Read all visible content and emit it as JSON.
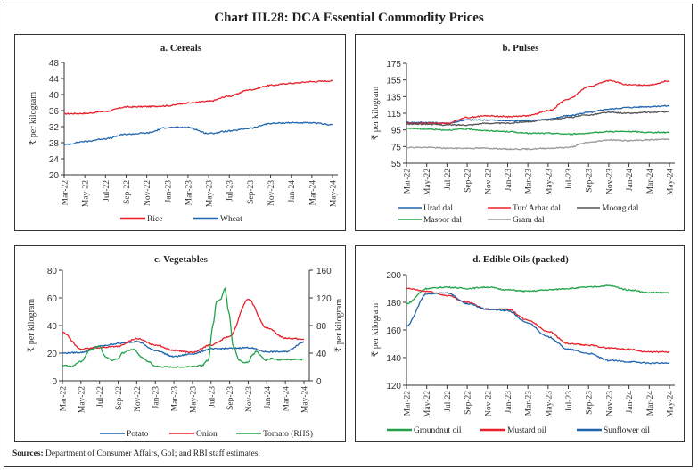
{
  "title": "Chart III.28: DCA Essential Commodity Prices",
  "sources_label": "Sources:",
  "sources_text": " Department of Consumer Affairs, GoI; and RBI staff estimates.",
  "chart_data": [
    {
      "id": "cereals",
      "type": "line",
      "title": "a. Cereals",
      "ylabel": "₹ per kilogram",
      "ylim": [
        20,
        48
      ],
      "yticks": [
        20,
        24,
        28,
        32,
        36,
        40,
        44,
        48
      ],
      "categories": [
        "Mar-22",
        "May-22",
        "Jul-22",
        "Sep-22",
        "Nov-22",
        "Jan-23",
        "Mar-23",
        "May-23",
        "Jul-23",
        "Sep-23",
        "Nov-23",
        "Jan-24",
        "Mar-24",
        "May-24"
      ],
      "legend_position": "bottom",
      "series": [
        {
          "name": "Rice",
          "color": "#e8202a",
          "values": [
            35.2,
            35.3,
            35.8,
            36.9,
            37.0,
            37.2,
            37.9,
            38.3,
            39.6,
            41.2,
            42.3,
            42.8,
            43.2,
            43.4
          ]
        },
        {
          "name": "Wheat",
          "color": "#1f64ad",
          "values": [
            27.5,
            28.3,
            29.0,
            30.1,
            30.4,
            31.8,
            31.8,
            30.3,
            30.9,
            31.6,
            32.8,
            33.0,
            32.9,
            32.5
          ]
        }
      ]
    },
    {
      "id": "pulses",
      "type": "line",
      "title": "b. Pulses",
      "ylabel": "₹ per kilogram",
      "ylim": [
        55,
        175
      ],
      "yticks": [
        55,
        75,
        95,
        115,
        135,
        155,
        175
      ],
      "categories": [
        "Mar-22",
        "May-22",
        "Jul-22",
        "Sep-22",
        "Nov-22",
        "Jan-23",
        "Mar-23",
        "May-23",
        "Jul-23",
        "Sep-23",
        "Nov-23",
        "Jan-24",
        "Mar-24",
        "May-24"
      ],
      "legend_position": "bottom",
      "series": [
        {
          "name": "Urad dal",
          "color": "#1f64ad",
          "values": [
            104,
            104,
            103,
            107,
            107,
            106,
            106,
            108,
            112,
            116,
            120,
            122,
            123,
            124
          ]
        },
        {
          "name": "Tur/ Arhar dal",
          "color": "#e8202a",
          "values": [
            103,
            103,
            103,
            110,
            112,
            111,
            112,
            118,
            132,
            147,
            154,
            149,
            149,
            154
          ]
        },
        {
          "name": "Moong dal",
          "color": "#555555",
          "values": [
            102,
            102,
            101,
            101,
            103,
            103,
            105,
            107,
            110,
            113,
            116,
            115,
            116,
            117
          ]
        },
        {
          "name": "Masoor dal",
          "color": "#22a34a",
          "values": [
            97,
            96,
            95,
            96,
            94,
            93,
            91,
            91,
            90,
            91,
            93,
            93,
            92,
            92
          ]
        },
        {
          "name": "Gram dal",
          "color": "#999999",
          "values": [
            74,
            74,
            73,
            73,
            73,
            72,
            72,
            73,
            74,
            80,
            83,
            82,
            83,
            84
          ]
        }
      ]
    },
    {
      "id": "vegetables",
      "type": "line",
      "title": "c. Vegetables",
      "ylabel": "₹ per kilogram",
      "ylabel_right": "₹ per kilogram",
      "ylim": [
        0,
        80
      ],
      "yticks": [
        0,
        20,
        40,
        60,
        80
      ],
      "ylim_right": [
        0,
        160
      ],
      "yticks_right": [
        0,
        40,
        80,
        120,
        160
      ],
      "categories": [
        "Mar-22",
        "May-22",
        "Jul-22",
        "Sep-22",
        "Nov-22",
        "Jan-23",
        "Mar-23",
        "May-23",
        "Jul-23",
        "Sep-23",
        "Nov-23",
        "Jan-24",
        "Mar-24",
        "May-24"
      ],
      "legend_position": "bottom",
      "series": [
        {
          "name": "Potato",
          "color": "#1f64ad",
          "axis": "left",
          "values": [
            20,
            20.5,
            25,
            27,
            28.5,
            22,
            17.5,
            19.5,
            23,
            23.5,
            24,
            21,
            21,
            28
          ]
        },
        {
          "name": "Onion",
          "color": "#e8202a",
          "axis": "left",
          "values": [
            35,
            23,
            24,
            25,
            30.5,
            26,
            22,
            20.5,
            26,
            32,
            59,
            38,
            31,
            30
          ]
        },
        {
          "name": "Tomato (RHS)",
          "color": "#22a34a",
          "axis": "right",
          "values": [
            22,
            30,
            50,
            40,
            45,
            21,
            20,
            20,
            30,
            30,
            28,
            30,
            30,
            31
          ]
        }
      ],
      "tomato_detail": [
        [
          0,
          22
        ],
        [
          0.5,
          21
        ],
        [
          1,
          28
        ],
        [
          1.5,
          45
        ],
        [
          2,
          50
        ],
        [
          2.3,
          35
        ],
        [
          2.7,
          30
        ],
        [
          3,
          32
        ],
        [
          3.2,
          40
        ],
        [
          3.6,
          44
        ],
        [
          3.9,
          45
        ],
        [
          4.2,
          35
        ],
        [
          4.6,
          28
        ],
        [
          5,
          21
        ],
        [
          5.5,
          20
        ],
        [
          6,
          20
        ],
        [
          6.5,
          20
        ],
        [
          7,
          21
        ],
        [
          7.5,
          22
        ],
        [
          7.85,
          30
        ],
        [
          8.1,
          80
        ],
        [
          8.3,
          115
        ],
        [
          8.5,
          118
        ],
        [
          8.75,
          133
        ],
        [
          8.95,
          100
        ],
        [
          9.2,
          50
        ],
        [
          9.5,
          30
        ],
        [
          9.8,
          26
        ],
        [
          10,
          27
        ],
        [
          10.25,
          38
        ],
        [
          10.45,
          43
        ],
        [
          10.7,
          36
        ],
        [
          10.9,
          30
        ],
        [
          11.3,
          32
        ],
        [
          11.6,
          30
        ],
        [
          12,
          31
        ],
        [
          12.5,
          31
        ],
        [
          13,
          31
        ]
      ]
    },
    {
      "id": "edible_oils",
      "type": "line",
      "title": "d. Edible Oils (packed)",
      "ylabel": "₹ per kilogram",
      "ylim": [
        120,
        200
      ],
      "yticks": [
        120,
        140,
        160,
        180,
        200
      ],
      "categories": [
        "Mar-22",
        "May-22",
        "Jul-22",
        "Sep-22",
        "Nov-22",
        "Jan-23",
        "Mar-23",
        "May-23",
        "Jul-23",
        "Sep-23",
        "Nov-23",
        "Jan-24",
        "Mar-24",
        "May-24"
      ],
      "legend_position": "bottom",
      "series": [
        {
          "name": "Groundnut oil",
          "color": "#22a34a",
          "values": [
            179,
            190,
            191,
            190,
            191,
            189,
            188,
            189,
            190,
            191,
            192,
            189,
            187,
            187
          ]
        },
        {
          "name": "Mustard oil",
          "color": "#e8202a",
          "values": [
            190,
            188,
            185,
            180,
            175,
            175,
            167,
            159,
            150,
            149,
            147,
            146,
            144,
            144
          ]
        },
        {
          "name": "Sunflower oil",
          "color": "#1f64ad",
          "values": [
            163,
            186,
            187,
            179,
            175,
            174,
            165,
            155,
            146,
            143,
            138,
            137,
            136,
            136
          ]
        }
      ]
    }
  ]
}
